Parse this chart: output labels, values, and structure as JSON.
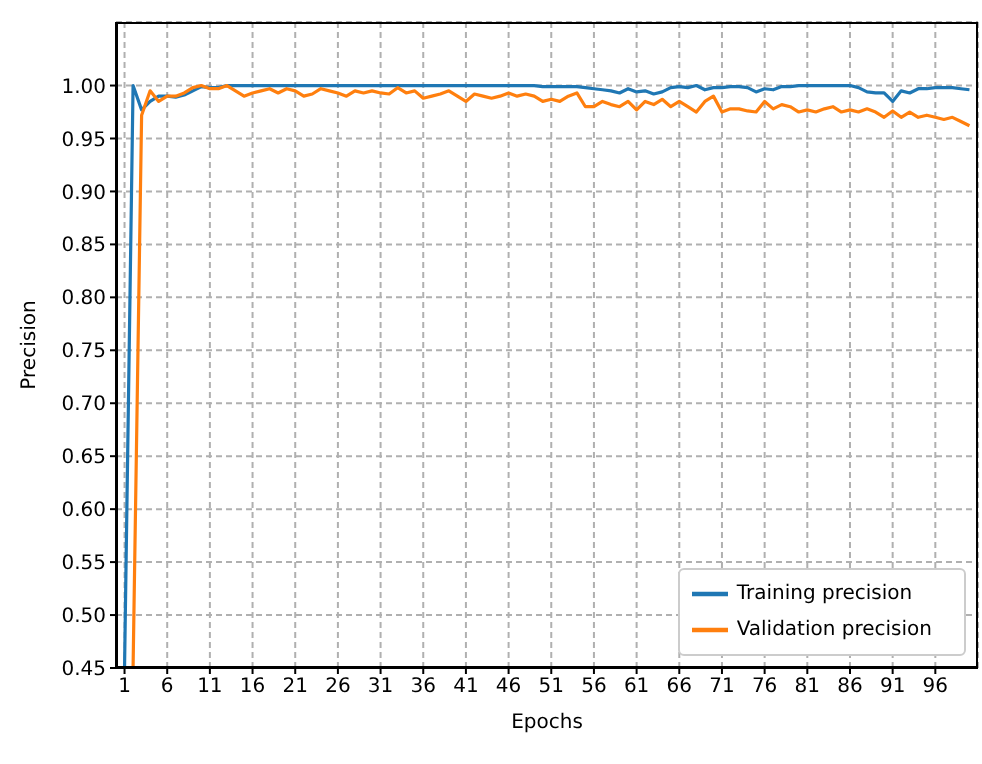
{
  "chart_data": {
    "type": "line",
    "xlabel": "Epochs",
    "ylabel": "Precision",
    "x": [
      1,
      2,
      3,
      4,
      5,
      6,
      7,
      8,
      9,
      10,
      11,
      12,
      13,
      14,
      15,
      16,
      17,
      18,
      19,
      20,
      21,
      22,
      23,
      24,
      25,
      26,
      27,
      28,
      29,
      30,
      31,
      32,
      33,
      34,
      35,
      36,
      37,
      38,
      39,
      40,
      41,
      42,
      43,
      44,
      45,
      46,
      47,
      48,
      49,
      50,
      51,
      52,
      53,
      54,
      55,
      56,
      57,
      58,
      59,
      60,
      61,
      62,
      63,
      64,
      65,
      66,
      67,
      68,
      69,
      70,
      71,
      72,
      73,
      74,
      75,
      76,
      77,
      78,
      79,
      80,
      81,
      82,
      83,
      84,
      85,
      86,
      87,
      88,
      89,
      90,
      91,
      92,
      93,
      94,
      95,
      96,
      97,
      98,
      99,
      100
    ],
    "series": [
      {
        "name": "Training precision",
        "color": "#1f77b4",
        "values": [
          0.45,
          1.0,
          0.977,
          0.985,
          0.99,
          0.99,
          0.989,
          0.991,
          0.995,
          0.999,
          0.998,
          0.998,
          1.0,
          1.0,
          1.0,
          1.0,
          1.0,
          1.0,
          1.0,
          1.0,
          1.0,
          1.0,
          1.0,
          1.0,
          1.0,
          1.0,
          1.0,
          1.0,
          1.0,
          1.0,
          1.0,
          1.0,
          1.0,
          1.0,
          1.0,
          1.0,
          1.0,
          1.0,
          1.0,
          1.0,
          1.0,
          1.0,
          1.0,
          1.0,
          1.0,
          1.0,
          1.0,
          1.0,
          1.0,
          0.999,
          0.999,
          0.999,
          0.999,
          0.999,
          0.998,
          0.997,
          0.996,
          0.995,
          0.993,
          0.997,
          0.994,
          0.995,
          0.992,
          0.994,
          0.998,
          0.999,
          0.998,
          1.0,
          0.996,
          0.998,
          0.998,
          0.999,
          0.999,
          0.998,
          0.994,
          0.997,
          0.996,
          0.999,
          0.999,
          1.0,
          1.0,
          1.0,
          1.0,
          1.0,
          1.0,
          1.0,
          0.998,
          0.994,
          0.993,
          0.993,
          0.985,
          0.995,
          0.993,
          0.997,
          0.997,
          0.998,
          0.998,
          0.998,
          0.997,
          0.996
        ]
      },
      {
        "name": "Validation precision",
        "color": "#ff7f0e",
        "values": [
          0.45,
          0.45,
          0.972,
          0.995,
          0.985,
          0.99,
          0.99,
          0.993,
          0.998,
          1.0,
          0.997,
          0.997,
          1.0,
          0.995,
          0.99,
          0.993,
          0.995,
          0.997,
          0.993,
          0.997,
          0.995,
          0.99,
          0.992,
          0.997,
          0.995,
          0.993,
          0.99,
          0.995,
          0.993,
          0.995,
          0.993,
          0.992,
          0.998,
          0.993,
          0.995,
          0.988,
          0.99,
          0.992,
          0.995,
          0.99,
          0.985,
          0.992,
          0.99,
          0.988,
          0.99,
          0.993,
          0.99,
          0.992,
          0.99,
          0.985,
          0.987,
          0.985,
          0.99,
          0.993,
          0.98,
          0.98,
          0.985,
          0.982,
          0.98,
          0.985,
          0.977,
          0.985,
          0.982,
          0.987,
          0.98,
          0.985,
          0.98,
          0.975,
          0.985,
          0.99,
          0.975,
          0.978,
          0.978,
          0.976,
          0.975,
          0.985,
          0.978,
          0.982,
          0.98,
          0.975,
          0.977,
          0.975,
          0.978,
          0.98,
          0.975,
          0.977,
          0.975,
          0.978,
          0.975,
          0.97,
          0.976,
          0.97,
          0.975,
          0.97,
          0.972,
          0.97,
          0.968,
          0.97,
          0.966,
          0.962
        ]
      }
    ],
    "xlim": [
      0,
      101
    ],
    "xticks": [
      1,
      6,
      11,
      16,
      21,
      26,
      31,
      36,
      41,
      46,
      51,
      56,
      61,
      66,
      71,
      76,
      81,
      86,
      91,
      96
    ],
    "ylim": [
      0.45,
      1.06
    ],
    "yticks": [
      {
        "value": 0.45,
        "label": "0.45"
      },
      {
        "value": 0.5,
        "label": "0.50"
      },
      {
        "value": 0.55,
        "label": "0.55"
      },
      {
        "value": 0.6,
        "label": "0.60"
      },
      {
        "value": 0.65,
        "label": "0.65"
      },
      {
        "value": 0.7,
        "label": "0.70"
      },
      {
        "value": 0.75,
        "label": "0.75"
      },
      {
        "value": 0.8,
        "label": "0.80"
      },
      {
        "value": 0.85,
        "label": "0.85"
      },
      {
        "value": 0.9,
        "label": "0.90"
      },
      {
        "value": 0.95,
        "label": "0.95"
      },
      {
        "value": 1.0,
        "label": "1.00"
      }
    ],
    "grid": true,
    "legend": "bottom right",
    "marker": "none",
    "line_style": "solid"
  }
}
